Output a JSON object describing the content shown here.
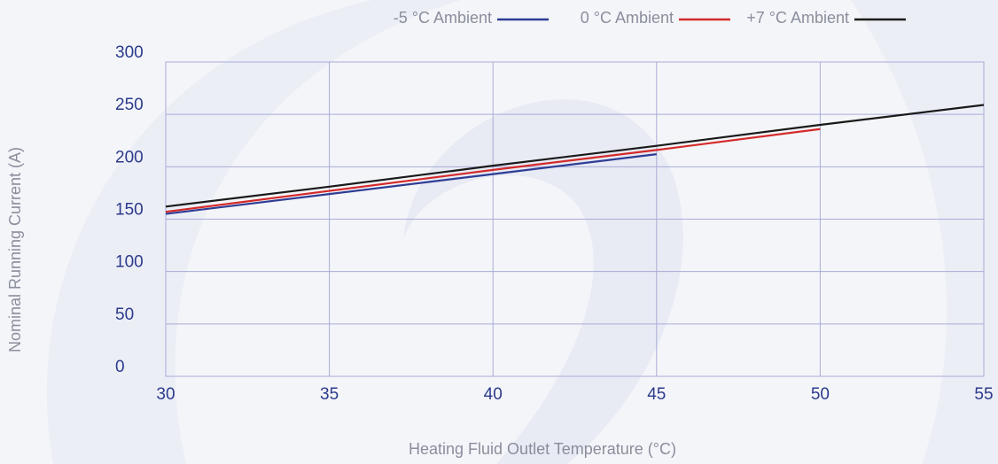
{
  "chart_data": {
    "type": "line",
    "x_label": "Heating Fluid Outlet Temperature (°C)",
    "y_label": "Nominal Running Current (A)",
    "x": [
      30,
      35,
      40,
      45,
      50,
      55
    ],
    "series": [
      {
        "name": "-5 °C  Ambient",
        "color": "#2e3d94",
        "values": [
          155,
          174,
          193,
          212,
          null,
          null
        ]
      },
      {
        "name": "0 °C  Ambient",
        "color": "#d42a2a",
        "values": [
          157,
          177,
          197,
          216,
          236,
          null
        ]
      },
      {
        "name": "+7 °C  Ambient",
        "color": "#1a1a1a",
        "values": [
          162,
          181,
          201,
          220,
          240,
          259
        ]
      }
    ],
    "xlim": [
      30,
      55
    ],
    "xticks": [
      30,
      35,
      40,
      45,
      50,
      55
    ],
    "ylim": [
      0,
      300
    ],
    "yticks": [
      0,
      50,
      100,
      150,
      200,
      250,
      300
    ],
    "grid": true
  }
}
